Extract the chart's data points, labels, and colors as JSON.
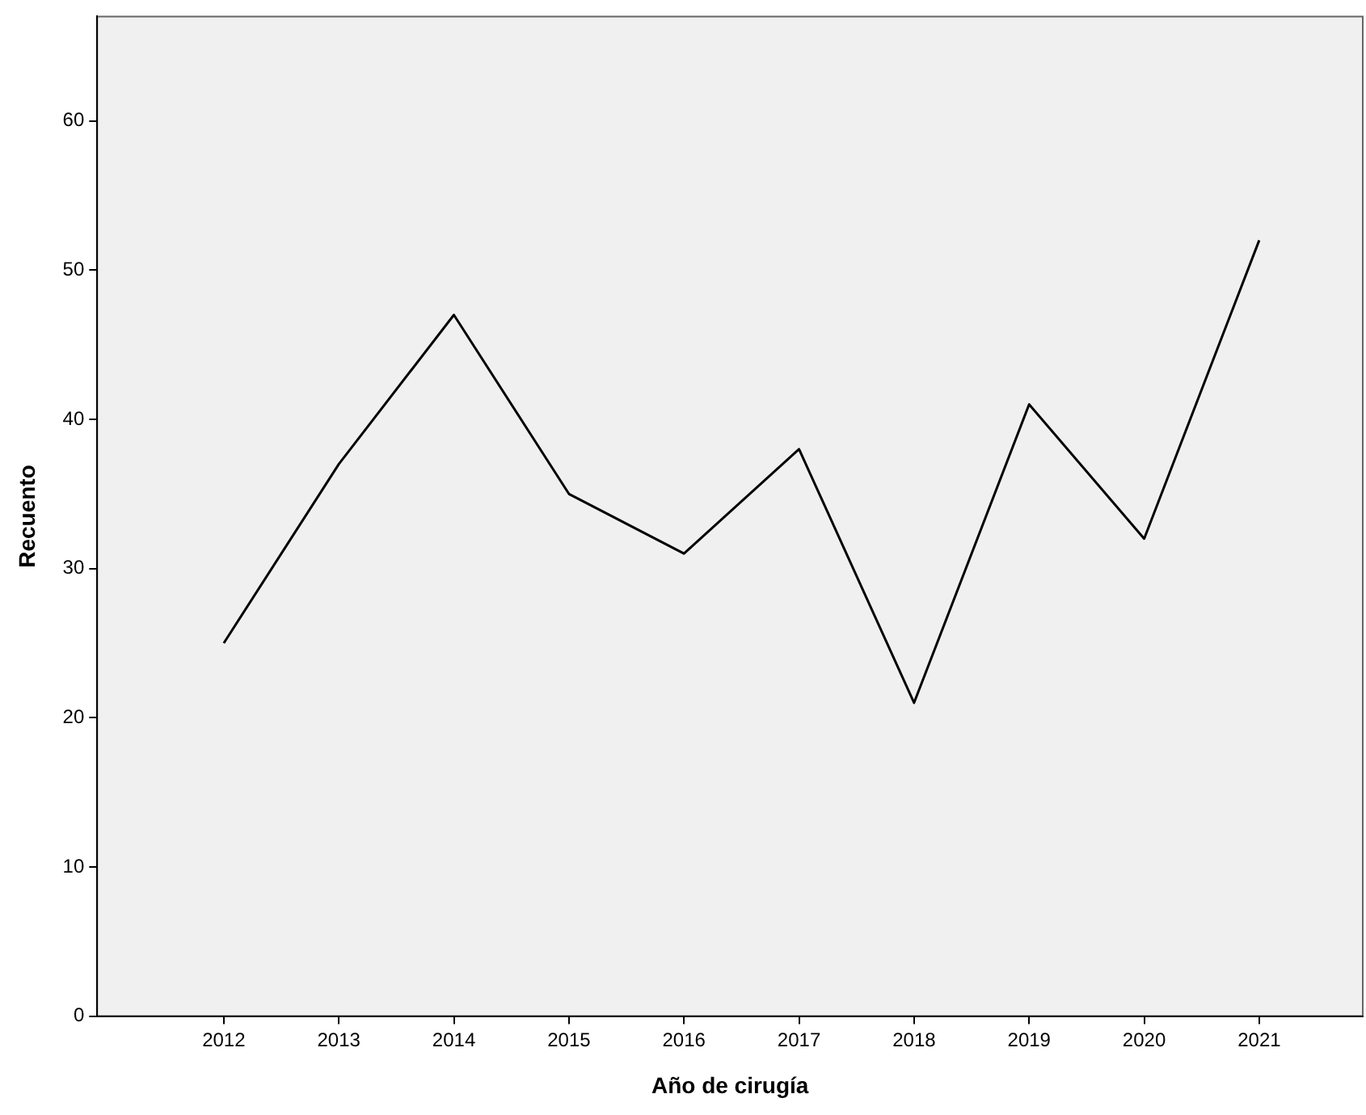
{
  "chart_data": {
    "type": "line",
    "xlabel": "Año de cirugía",
    "ylabel": "Recuento",
    "x": [
      2012,
      2013,
      2014,
      2015,
      2016,
      2017,
      2018,
      2019,
      2020,
      2021
    ],
    "series": [
      {
        "color": "#000000",
        "values": [
          25,
          37,
          47,
          35,
          31,
          38,
          21,
          41,
          32,
          52
        ]
      }
    ],
    "xlim": [
      2010.9,
      2021.9
    ],
    "xticks": [
      2012,
      2013,
      2014,
      2015,
      2016,
      2017,
      2018,
      2019,
      2020,
      2021
    ],
    "ylim": [
      0,
      67
    ],
    "yticks": [
      0,
      10,
      20,
      30,
      40,
      50,
      60
    ],
    "grid": false,
    "legend": false,
    "marker": "none",
    "line_style": "solid"
  }
}
